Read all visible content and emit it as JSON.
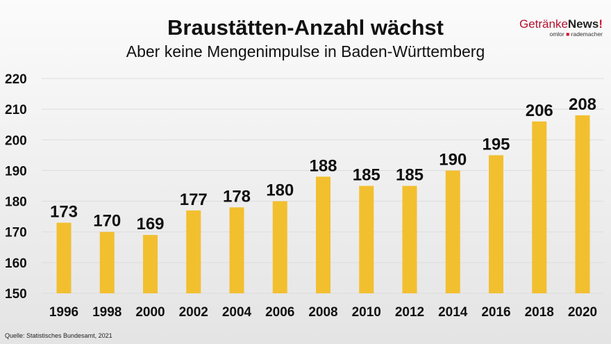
{
  "header": {
    "title": "Braustätten-Anzahl wächst",
    "subtitle": "Aber keine Mengenimpulse in Baden-Württemberg"
  },
  "logo": {
    "brand_part1": "Getränke",
    "brand_part2": "News",
    "exclaim": "!",
    "tagline_left": "omlor",
    "tagline_right": "rademacher"
  },
  "source": "Quelle: Statistisches Bundesamt, 2021",
  "chart_data": {
    "type": "bar",
    "title": "Braustätten-Anzahl wächst",
    "subtitle": "Aber keine Mengenimpulse in Baden-Württemberg",
    "categories": [
      "1996",
      "1998",
      "2000",
      "2002",
      "2004",
      "2006",
      "2008",
      "2010",
      "2012",
      "2014",
      "2016",
      "2018",
      "2020"
    ],
    "values": [
      173,
      170,
      169,
      177,
      178,
      180,
      188,
      185,
      185,
      190,
      195,
      206,
      208
    ],
    "ylim": [
      150,
      220
    ],
    "yticks": [
      150,
      160,
      170,
      180,
      190,
      200,
      210,
      220
    ],
    "grid": true,
    "bar_color": "#F2BF2F",
    "data_labels": true
  }
}
